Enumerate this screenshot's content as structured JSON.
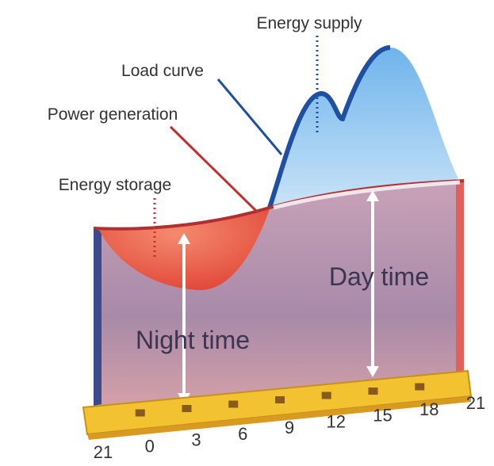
{
  "labels": {
    "energy_supply": "Energy supply",
    "load_curve": "Load curve",
    "power_generation": "Power generation",
    "energy_storage": "Energy storage",
    "night_time": "Night time",
    "day_time": "Day time"
  },
  "hours": [
    21,
    0,
    3,
    6,
    9,
    12,
    15,
    18,
    21
  ]
}
